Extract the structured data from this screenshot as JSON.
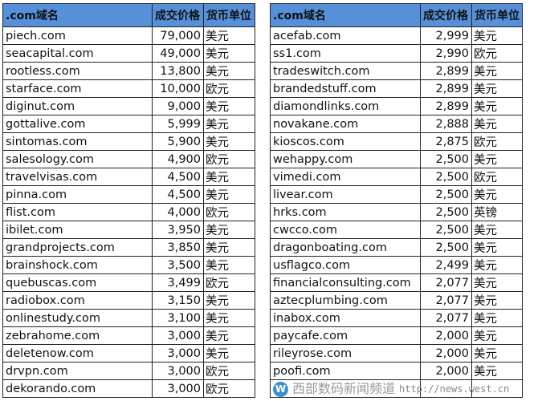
{
  "headers": {
    "domain": ".com域名",
    "price": "成交价格",
    "currency": "货币单位"
  },
  "colors": {
    "header_bg": "#5590d8"
  },
  "left_rows": [
    [
      "piech.com",
      "79,000",
      "美元"
    ],
    [
      "seacapital.com",
      "49,000",
      "美元"
    ],
    [
      "rootless.com",
      "13,800",
      "美元"
    ],
    [
      "starface.com",
      "10,000",
      "欧元"
    ],
    [
      "diginut.com",
      "9,000",
      "美元"
    ],
    [
      "gottalive.com",
      "5,999",
      "美元"
    ],
    [
      "sintomas.com",
      "5,900",
      "美元"
    ],
    [
      "salesology.com",
      "4,900",
      "欧元"
    ],
    [
      "travelvisas.com",
      "4,500",
      "美元"
    ],
    [
      "pinna.com",
      "4,500",
      "美元"
    ],
    [
      "flist.com",
      "4,000",
      "欧元"
    ],
    [
      "ibilet.com",
      "3,950",
      "美元"
    ],
    [
      "grandprojects.com",
      "3,850",
      "美元"
    ],
    [
      "brainshock.com",
      "3,500",
      "美元"
    ],
    [
      "quebuscas.com",
      "3,499",
      "欧元"
    ],
    [
      "radiobox.com",
      "3,150",
      "美元"
    ],
    [
      "onlinestudy.com",
      "3,100",
      "美元"
    ],
    [
      "zebrahome.com",
      "3,000",
      "美元"
    ],
    [
      "deletenow.com",
      "3,000",
      "美元"
    ],
    [
      "drvpn.com",
      "3,000",
      "欧元"
    ],
    [
      "dekorando.com",
      "3,000",
      "欧元"
    ]
  ],
  "right_rows": [
    [
      "acefab.com",
      "2,999",
      "美元"
    ],
    [
      "ss1.com",
      "2,990",
      "欧元"
    ],
    [
      "tradeswitch.com",
      "2,899",
      "美元"
    ],
    [
      "brandedstuff.com",
      "2,899",
      "美元"
    ],
    [
      "diamondlinks.com",
      "2,899",
      "美元"
    ],
    [
      "novakane.com",
      "2,888",
      "美元"
    ],
    [
      "kioscos.com",
      "2,875",
      "欧元"
    ],
    [
      "wehappy.com",
      "2,500",
      "美元"
    ],
    [
      "vimedi.com",
      "2,500",
      "欧元"
    ],
    [
      "livear.com",
      "2,500",
      "美元"
    ],
    [
      "hrks.com",
      "2,500",
      "英镑"
    ],
    [
      "cwcco.com",
      "2,500",
      "美元"
    ],
    [
      "dragonboating.com",
      "2,500",
      "美元"
    ],
    [
      "usflagco.com",
      "2,499",
      "美元"
    ],
    [
      "financialconsulting.com",
      "2,077",
      "美元"
    ],
    [
      "aztecplumbing.com",
      "2,077",
      "美元"
    ],
    [
      "inabox.com",
      "2,077",
      "美元"
    ],
    [
      "paycafe.com",
      "2,000",
      "美元"
    ],
    [
      "rileyrose.com",
      "2,000",
      "美元"
    ],
    [
      "poofi.com",
      "2,000",
      "美元"
    ],
    [
      "",
      "",
      ""
    ]
  ],
  "watermark": {
    "title": "西部数码新闻频道",
    "url": "http://news.west.cn"
  }
}
